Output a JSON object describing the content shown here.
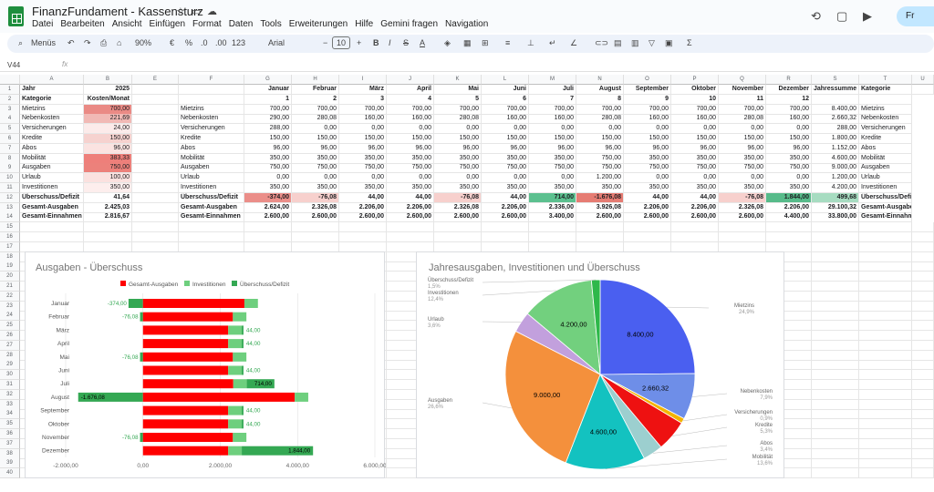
{
  "app": {
    "title": "FinanzFundament - Kassensturz",
    "menus": [
      "Datei",
      "Bearbeiten",
      "Ansicht",
      "Einfügen",
      "Format",
      "Daten",
      "Tools",
      "Erweiterungen",
      "Hilfe",
      "Gemini fragen",
      "Navigation"
    ],
    "share_label": "Fr"
  },
  "toolbar": {
    "menus": "Menüs",
    "zoom": "90%",
    "percent": "%",
    "decimals": "123",
    "font": "Arial",
    "font_size": "10",
    "currency": "€"
  },
  "formula_bar": {
    "cell_ref": "V44",
    "fx": "fx"
  },
  "columns": [
    "A",
    "B",
    "E",
    "F",
    "G",
    "H",
    "I",
    "J",
    "K",
    "L",
    "M",
    "N",
    "O",
    "P",
    "Q",
    "R",
    "S",
    "T",
    "U"
  ],
  "sheet": {
    "rows": [
      [
        "Jahr",
        "2025",
        "",
        "",
        "Januar",
        "Februar",
        "März",
        "April",
        "Mai",
        "Juni",
        "Juli",
        "August",
        "September",
        "Oktober",
        "November",
        "Dezember",
        "Jahressumme",
        "Kategorie",
        ""
      ],
      [
        "Kategorie",
        "Kosten/Monat",
        "",
        "",
        "1",
        "2",
        "3",
        "4",
        "5",
        "6",
        "7",
        "8",
        "9",
        "10",
        "11",
        "12",
        "",
        ""
      ],
      [
        "Mietzins",
        "700,00",
        "",
        "Mietzins",
        "700,00",
        "700,00",
        "700,00",
        "700,00",
        "700,00",
        "700,00",
        "700,00",
        "700,00",
        "700,00",
        "700,00",
        "700,00",
        "700,00",
        "8.400,00",
        "Mietzins"
      ],
      [
        "Nebenkosten",
        "221,69",
        "",
        "Nebenkosten",
        "290,00",
        "280,08",
        "160,00",
        "160,00",
        "280,08",
        "160,00",
        "160,00",
        "280,08",
        "160,00",
        "160,00",
        "280,08",
        "160,00",
        "2.660,32",
        "Nebenkosten"
      ],
      [
        "Versicherungen",
        "24,00",
        "",
        "Versicherungen",
        "288,00",
        "0,00",
        "0,00",
        "0,00",
        "0,00",
        "0,00",
        "0,00",
        "0,00",
        "0,00",
        "0,00",
        "0,00",
        "0,00",
        "288,00",
        "Versicherungen"
      ],
      [
        "Kredite",
        "150,00",
        "",
        "Kredite",
        "150,00",
        "150,00",
        "150,00",
        "150,00",
        "150,00",
        "150,00",
        "150,00",
        "150,00",
        "150,00",
        "150,00",
        "150,00",
        "150,00",
        "1.800,00",
        "Kredite"
      ],
      [
        "Abos",
        "96,00",
        "",
        "Abos",
        "96,00",
        "96,00",
        "96,00",
        "96,00",
        "96,00",
        "96,00",
        "96,00",
        "96,00",
        "96,00",
        "96,00",
        "96,00",
        "96,00",
        "1.152,00",
        "Abos"
      ],
      [
        "Mobilität",
        "383,33",
        "",
        "Mobilität",
        "350,00",
        "350,00",
        "350,00",
        "350,00",
        "350,00",
        "350,00",
        "350,00",
        "750,00",
        "350,00",
        "350,00",
        "350,00",
        "350,00",
        "4.600,00",
        "Mobilität"
      ],
      [
        "Ausgaben",
        "750,00",
        "",
        "Ausgaben",
        "750,00",
        "750,00",
        "750,00",
        "750,00",
        "750,00",
        "750,00",
        "750,00",
        "750,00",
        "750,00",
        "750,00",
        "750,00",
        "750,00",
        "9.000,00",
        "Ausgaben"
      ],
      [
        "Urlaub",
        "100,00",
        "",
        "Urlaub",
        "0,00",
        "0,00",
        "0,00",
        "0,00",
        "0,00",
        "0,00",
        "0,00",
        "1.200,00",
        "0,00",
        "0,00",
        "0,00",
        "0,00",
        "1.200,00",
        "Urlaub"
      ],
      [
        "Investitionen",
        "350,00",
        "",
        "Investitionen",
        "350,00",
        "350,00",
        "350,00",
        "350,00",
        "350,00",
        "350,00",
        "350,00",
        "350,00",
        "350,00",
        "350,00",
        "350,00",
        "350,00",
        "4.200,00",
        "Investitionen"
      ],
      [
        "Überschuss/Defizit",
        "41,64",
        "",
        "Überschuss/Defizit",
        "-374,00",
        "-76,08",
        "44,00",
        "44,00",
        "-76,08",
        "44,00",
        "714,00",
        "-1.676,08",
        "44,00",
        "44,00",
        "-76,08",
        "1.844,00",
        "499,68",
        "Überschuss/Defizit"
      ],
      [
        "Gesamt-Ausgaben",
        "2.425,03",
        "",
        "Gesamt-Ausgaben",
        "2.624,00",
        "2.326,08",
        "2.206,00",
        "2.206,00",
        "2.326,08",
        "2.206,00",
        "2.336,00",
        "3.926,08",
        "2.206,00",
        "2.206,00",
        "2.326,08",
        "2.206,00",
        "29.100,32",
        "Gesamt-Ausgaben"
      ],
      [
        "Gesamt-Einnahmen",
        "2.816,67",
        "",
        "Gesamt-Einnahmen",
        "2.600,00",
        "2.600,00",
        "2.600,00",
        "2.600,00",
        "2.600,00",
        "2.600,00",
        "3.400,00",
        "2.600,00",
        "2.600,00",
        "2.600,00",
        "2.600,00",
        "4.400,00",
        "33.800,00",
        "Gesamt-Einnahmen"
      ]
    ],
    "row_numbers": [
      "1",
      "2",
      "3",
      "4",
      "5",
      "6",
      "7",
      "8",
      "9",
      "10",
      "11",
      "12",
      "13",
      "14",
      "15",
      "16",
      "17",
      "18",
      "19",
      "20",
      "21",
      "22",
      "23",
      "24",
      "25",
      "26",
      "27",
      "28",
      "29",
      "30",
      "31",
      "32",
      "33",
      "34",
      "35",
      "36",
      "37",
      "38",
      "39",
      "40"
    ]
  },
  "colors": {
    "bar_red": "#ff0000",
    "bar_light_green": "#6ecf7e",
    "bar_green": "#34a853",
    "heat_red": "#e67c73",
    "heat_green": "#57bb8a"
  },
  "chart_data": [
    {
      "type": "bar",
      "title": "Ausgaben - Überschuss",
      "categories": [
        "Januar",
        "Februar",
        "März",
        "April",
        "Mai",
        "Juni",
        "Juli",
        "August",
        "September",
        "Oktober",
        "November",
        "Dezember"
      ],
      "series": [
        {
          "name": "Gesamt-Ausgaben",
          "values": [
            2624,
            2326.08,
            2206,
            2206,
            2326.08,
            2206,
            2336,
            3926.08,
            2206,
            2206,
            2326.08,
            2206
          ]
        },
        {
          "name": "Investitionen",
          "values": [
            350,
            350,
            350,
            350,
            350,
            350,
            350,
            350,
            350,
            350,
            350,
            350
          ]
        },
        {
          "name": "Überschuss/Defizit",
          "values": [
            -374,
            -76.08,
            44,
            44,
            -76.08,
            44,
            714,
            -1676.08,
            44,
            44,
            -76.08,
            1844
          ]
        }
      ],
      "data_labels": [
        "-374,00",
        "-76,08",
        "44,00",
        "44,00",
        "-76,08",
        "44,00",
        "714,00",
        "-1.676,08",
        "44,00",
        "44,00",
        "-76,08",
        "1.844,00"
      ],
      "xticks": [
        "-2.000,00",
        "0,00",
        "2.000,00",
        "4.000,00",
        "6.000,00"
      ],
      "xlim": [
        -2000,
        6000
      ],
      "stacked": true,
      "orientation": "horizontal",
      "legend": "top"
    },
    {
      "type": "pie",
      "title": "Jahresausgaben, Investitionen und Überschuss",
      "slices": [
        {
          "label": "Mietzins",
          "value": 8400,
          "display": "8.400,00",
          "pct": "24,9%",
          "color": "#4a5ff0"
        },
        {
          "label": "Nebenkosten",
          "value": 2660.32,
          "display": "2.660,32",
          "pct": "7,9%",
          "color": "#6e8ee8"
        },
        {
          "label": "Versicherungen",
          "value": 288,
          "display": "",
          "pct": "0,9%",
          "color": "#f4b400"
        },
        {
          "label": "Kredite",
          "value": 1800,
          "display": "",
          "pct": "5,3%",
          "color": "#ee1111"
        },
        {
          "label": "Abos",
          "value": 1152,
          "display": "",
          "pct": "3,4%",
          "color": "#9ccfcf"
        },
        {
          "label": "Mobilität",
          "value": 4600,
          "display": "4.600,00",
          "pct": "13,6%",
          "color": "#13c2c0"
        },
        {
          "label": "Ausgaben",
          "value": 9000,
          "display": "9.000,00",
          "pct": "26,6%",
          "color": "#f4903c"
        },
        {
          "label": "Urlaub",
          "value": 1200,
          "display": "",
          "pct": "3,6%",
          "color": "#c2a0dd"
        },
        {
          "label": "Investitionen",
          "value": 4200,
          "display": "4.200,00",
          "pct": "12,4%",
          "color": "#72d07e"
        },
        {
          "label": "Überschuss/Defizit",
          "value": 499.68,
          "display": "",
          "pct": "1,5%",
          "color": "#2eb84a"
        }
      ]
    }
  ]
}
